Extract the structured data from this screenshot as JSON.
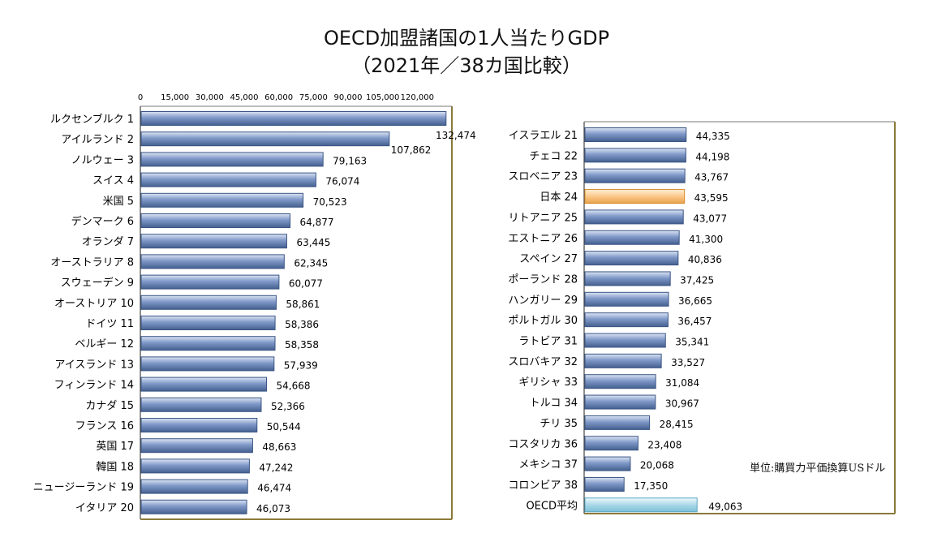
{
  "title_line1": "OECD加盟諸国の1人当たりGDP",
  "title_line2": "（2021年／38カ国比較）",
  "unit_note": "単位:購買力平価換算USドル",
  "colors": {
    "bar": "#6f8bbd",
    "bar_highlight": "#fbc88a",
    "bar_average": "#a9d8e8",
    "frame": "#8a7a3a"
  },
  "chart_data": [
    {
      "type": "bar",
      "orientation": "horizontal",
      "title": "OECD加盟諸国の1人当たりGDP（2021年／38カ国比較）",
      "xlim": [
        0,
        135000
      ],
      "x_ticks": [
        "0",
        "15,000",
        "30,000",
        "45,000",
        "60,000",
        "75,000",
        "90,000",
        "105,000",
        "120,000"
      ],
      "categories": [
        "ルクセンブルク 1",
        "アイルランド 2",
        "ノルウェー 3",
        "スイス 4",
        "米国 5",
        "デンマーク 6",
        "オランダ 7",
        "オーストラリア 8",
        "スウェーデン 9",
        "オーストリア 10",
        "ドイツ 11",
        "ベルギー 12",
        "アイスランド 13",
        "フィンランド 14",
        "カナダ 15",
        "フランス 16",
        "英国 17",
        "韓国 18",
        "ニュージーランド 19",
        "イタリア 20"
      ],
      "values": [
        132474,
        107862,
        79163,
        76074,
        70523,
        64877,
        63445,
        62345,
        60077,
        58861,
        58386,
        58358,
        57939,
        54668,
        52366,
        50544,
        48663,
        47242,
        46474,
        46073
      ],
      "value_labels": [
        "132,474",
        "107,862",
        "79,163",
        "76,074",
        "70,523",
        "64,877",
        "63,445",
        "62,345",
        "60,077",
        "58,861",
        "58,386",
        "58,358",
        "57,939",
        "54,668",
        "52,366",
        "50,544",
        "48,663",
        "47,242",
        "46,474",
        "46,073"
      ]
    },
    {
      "type": "bar",
      "orientation": "horizontal",
      "xlim": [
        0,
        135000
      ],
      "categories": [
        "イスラエル 21",
        "チェコ 22",
        "スロベニア 23",
        "日本 24",
        "リトアニア 25",
        "エストニア 26",
        "スペイン 27",
        "ポーランド 28",
        "ハンガリー 29",
        "ポルトガル 30",
        "ラトビア 31",
        "スロバキア 32",
        "ギリシャ 33",
        "トルコ 34",
        "チリ 35",
        "コスタリカ 36",
        "メキシコ 37",
        "コロンビア 38",
        "OECD平均"
      ],
      "values": [
        44335,
        44198,
        43767,
        43595,
        43077,
        41300,
        40836,
        37425,
        36665,
        36457,
        35341,
        33527,
        31084,
        30967,
        28415,
        23408,
        20068,
        17350,
        49063
      ],
      "value_labels": [
        "44,335",
        "44,198",
        "43,767",
        "43,595",
        "43,077",
        "41,300",
        "40,836",
        "37,425",
        "36,665",
        "36,457",
        "35,341",
        "33,527",
        "31,084",
        "30,967",
        "28,415",
        "23,408",
        "20,068",
        "17,350",
        "49,063"
      ],
      "highlight_category": "日本 24",
      "average_category": "OECD平均"
    }
  ]
}
